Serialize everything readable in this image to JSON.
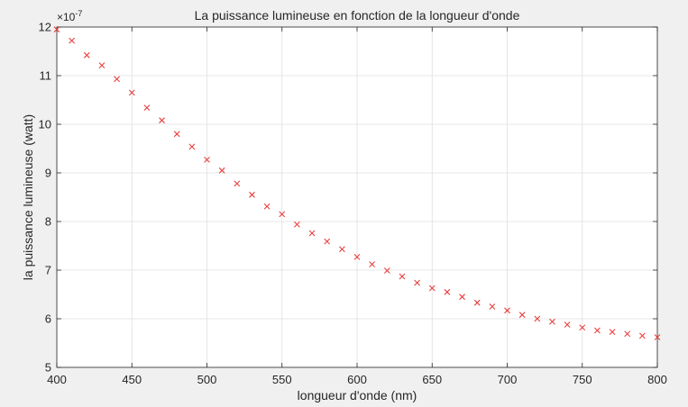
{
  "chart_data": {
    "type": "scatter",
    "title": "La puissance lumineuse en fonction de la longueur d'onde",
    "xlabel": "longueur d'onde (nm)",
    "ylabel": "la puissance lumineuse (watt)",
    "y_exponent_label": "×10",
    "y_exponent_power": "-7",
    "xlim": [
      400,
      800
    ],
    "ylim": [
      5,
      12
    ],
    "x_ticks": [
      400,
      450,
      500,
      550,
      600,
      650,
      700,
      750,
      800
    ],
    "y_ticks": [
      5,
      6,
      7,
      8,
      9,
      10,
      11,
      12
    ],
    "grid": true,
    "marker": "x",
    "marker_color": "#e8403e",
    "series": [
      {
        "x": [
          400,
          410,
          420,
          430,
          440,
          450,
          460,
          470,
          480,
          490,
          500,
          510,
          520,
          530,
          540,
          550,
          560,
          570,
          580,
          590,
          600,
          610,
          620,
          630,
          640,
          650,
          660,
          670,
          680,
          690,
          700,
          710,
          720,
          730,
          740,
          750,
          760,
          770,
          780,
          790,
          800
        ],
        "y": [
          11.95,
          11.72,
          11.42,
          11.21,
          10.93,
          10.65,
          10.34,
          10.08,
          9.8,
          9.54,
          9.27,
          9.05,
          8.78,
          8.55,
          8.31,
          8.15,
          7.94,
          7.76,
          7.59,
          7.43,
          7.27,
          7.12,
          6.99,
          6.87,
          6.74,
          6.63,
          6.55,
          6.45,
          6.33,
          6.25,
          6.17,
          6.08,
          6.0,
          5.94,
          5.88,
          5.82,
          5.76,
          5.73,
          5.69,
          5.65,
          5.62
        ]
      }
    ]
  }
}
